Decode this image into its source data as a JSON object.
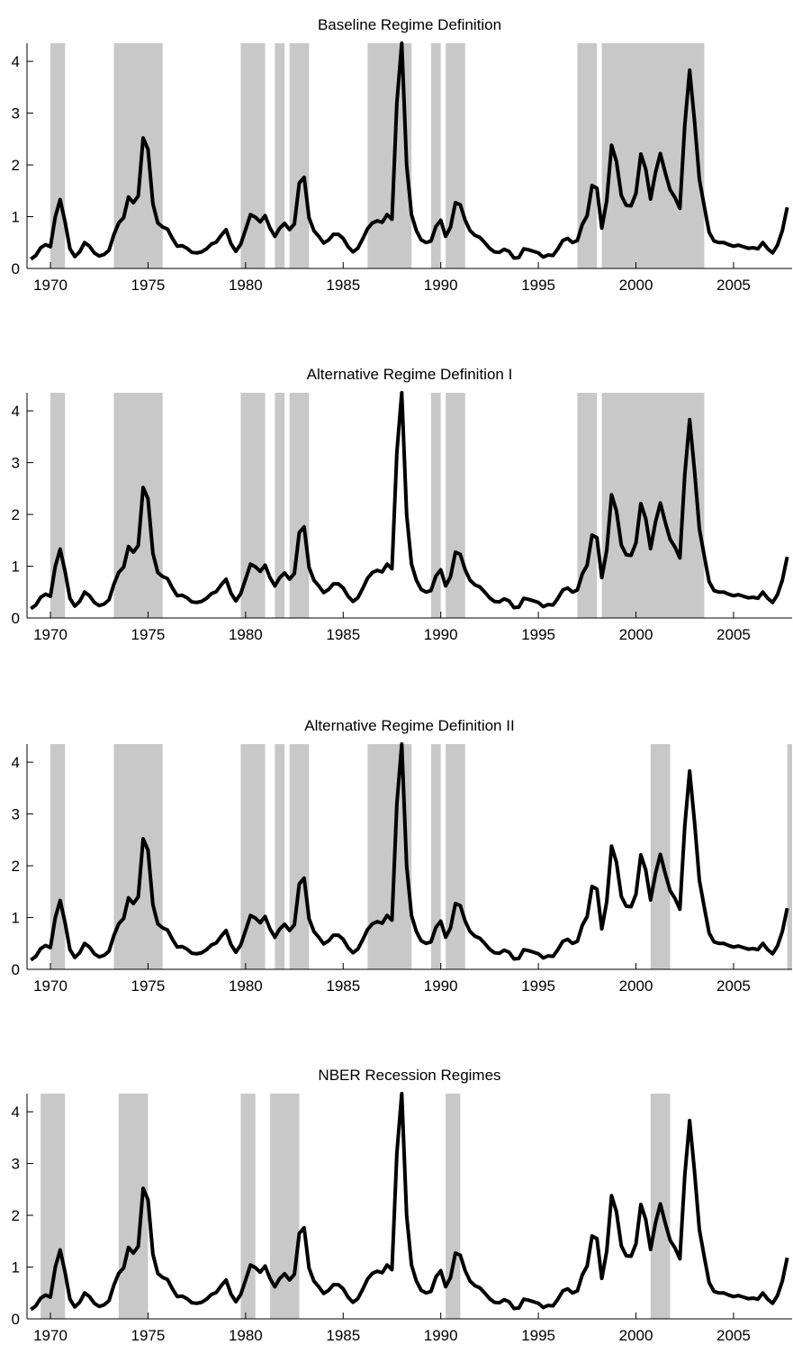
{
  "colors": {
    "line": "#000000",
    "shade": "#c8c8c8",
    "axis": "#000000",
    "background": "#ffffff"
  },
  "series_x": [
    1969.0,
    1969.25,
    1969.5,
    1969.75,
    1970.0,
    1970.25,
    1970.5,
    1970.75,
    1971.0,
    1971.25,
    1971.5,
    1971.75,
    1972.0,
    1972.25,
    1972.5,
    1972.75,
    1973.0,
    1973.25,
    1973.5,
    1973.75,
    1974.0,
    1974.25,
    1974.5,
    1974.75,
    1975.0,
    1975.25,
    1975.5,
    1975.75,
    1976.0,
    1976.25,
    1976.5,
    1976.75,
    1977.0,
    1977.25,
    1977.5,
    1977.75,
    1978.0,
    1978.25,
    1978.5,
    1978.75,
    1979.0,
    1979.25,
    1979.5,
    1979.75,
    1980.0,
    1980.25,
    1980.5,
    1980.75,
    1981.0,
    1981.25,
    1981.5,
    1981.75,
    1982.0,
    1982.25,
    1982.5,
    1982.75,
    1983.0,
    1983.25,
    1983.5,
    1983.75,
    1984.0,
    1984.25,
    1984.5,
    1984.75,
    1985.0,
    1985.25,
    1985.5,
    1985.75,
    1986.0,
    1986.25,
    1986.5,
    1986.75,
    1987.0,
    1987.25,
    1987.5,
    1987.75,
    1988.0,
    1988.25,
    1988.5,
    1988.75,
    1989.0,
    1989.25,
    1989.5,
    1989.75,
    1990.0,
    1990.25,
    1990.5,
    1990.75,
    1991.0,
    1991.25,
    1991.5,
    1991.75,
    1992.0,
    1992.25,
    1992.5,
    1992.75,
    1993.0,
    1993.25,
    1993.5,
    1993.75,
    1994.0,
    1994.25,
    1994.5,
    1994.75,
    1995.0,
    1995.25,
    1995.5,
    1995.75,
    1996.0,
    1996.25,
    1996.5,
    1996.75,
    1997.0,
    1997.25,
    1997.5,
    1997.75,
    1998.0,
    1998.25,
    1998.5,
    1998.75,
    1999.0,
    1999.25,
    1999.5,
    1999.75,
    2000.0,
    2000.25,
    2000.5,
    2000.75,
    2001.0,
    2001.25,
    2001.5,
    2001.75,
    2002.0,
    2002.25,
    2002.5,
    2002.75,
    2003.0,
    2003.25,
    2003.5,
    2003.75,
    2004.0,
    2004.25,
    2004.5,
    2004.75,
    2005.0,
    2005.25,
    2005.5,
    2005.75,
    2006.0,
    2006.25,
    2006.5,
    2006.75,
    2007.0,
    2007.25,
    2007.5,
    2007.75
  ],
  "series_y": [
    0.18,
    0.25,
    0.4,
    0.46,
    0.42,
    1.0,
    1.33,
    0.9,
    0.38,
    0.23,
    0.32,
    0.5,
    0.43,
    0.3,
    0.24,
    0.27,
    0.35,
    0.65,
    0.88,
    0.98,
    1.38,
    1.27,
    1.4,
    2.52,
    2.3,
    1.25,
    0.88,
    0.8,
    0.76,
    0.58,
    0.43,
    0.44,
    0.39,
    0.31,
    0.3,
    0.32,
    0.38,
    0.47,
    0.51,
    0.64,
    0.75,
    0.48,
    0.33,
    0.47,
    0.75,
    1.04,
    0.99,
    0.9,
    1.02,
    0.78,
    0.62,
    0.78,
    0.87,
    0.75,
    0.86,
    1.65,
    1.76,
    0.98,
    0.73,
    0.62,
    0.49,
    0.55,
    0.66,
    0.66,
    0.58,
    0.42,
    0.32,
    0.39,
    0.57,
    0.77,
    0.88,
    0.92,
    0.89,
    1.04,
    0.95,
    3.2,
    4.35,
    2.0,
    1.04,
    0.73,
    0.55,
    0.5,
    0.53,
    0.81,
    0.93,
    0.62,
    0.8,
    1.27,
    1.23,
    0.93,
    0.73,
    0.64,
    0.6,
    0.5,
    0.39,
    0.32,
    0.31,
    0.37,
    0.33,
    0.2,
    0.21,
    0.38,
    0.36,
    0.33,
    0.3,
    0.22,
    0.26,
    0.25,
    0.38,
    0.54,
    0.58,
    0.5,
    0.54,
    0.85,
    1.02,
    1.6,
    1.55,
    0.78,
    1.3,
    2.38,
    2.07,
    1.41,
    1.22,
    1.21,
    1.45,
    2.21,
    1.92,
    1.34,
    1.85,
    2.22,
    1.85,
    1.52,
    1.37,
    1.16,
    2.76,
    3.83,
    2.85,
    1.72,
    1.2,
    0.7,
    0.53,
    0.5,
    0.5,
    0.46,
    0.43,
    0.45,
    0.42,
    0.39,
    0.4,
    0.38,
    0.5,
    0.38,
    0.3,
    0.45,
    0.73,
    1.18
  ],
  "chart_data": [
    {
      "type": "line",
      "title": "Baseline Regime Definition",
      "xlim": [
        1968.8,
        2008.0
      ],
      "ylim": [
        0,
        4.35
      ],
      "xticks": [
        1970,
        1975,
        1980,
        1985,
        1990,
        1995,
        2000,
        2005
      ],
      "xtick_labels": [
        "1970",
        "1975",
        "1980",
        "1985",
        "1990",
        "1995",
        "2000",
        "2005"
      ],
      "yticks": [
        0,
        1,
        2,
        3,
        4
      ],
      "ytick_labels": [
        "0",
        "1",
        "2",
        "3",
        "4"
      ],
      "shaded_regimes": [
        [
          1970.0,
          1970.75
        ],
        [
          1973.25,
          1975.75
        ],
        [
          1979.75,
          1981.0
        ],
        [
          1981.5,
          1982.0
        ],
        [
          1982.25,
          1983.25
        ],
        [
          1986.25,
          1988.5
        ],
        [
          1989.5,
          1990.0
        ],
        [
          1990.25,
          1991.25
        ],
        [
          1997.0,
          1998.0
        ],
        [
          1998.25,
          2003.5
        ]
      ],
      "series": [
        {
          "values": "see series_y"
        }
      ]
    },
    {
      "type": "line",
      "title": "Alternative Regime Definition I",
      "xlim": [
        1968.8,
        2008.0
      ],
      "ylim": [
        0,
        4.35
      ],
      "xticks": [
        1970,
        1975,
        1980,
        1985,
        1990,
        1995,
        2000,
        2005
      ],
      "xtick_labels": [
        "1970",
        "1975",
        "1980",
        "1985",
        "1990",
        "1995",
        "2000",
        "2005"
      ],
      "yticks": [
        0,
        1,
        2,
        3,
        4
      ],
      "ytick_labels": [
        "0",
        "1",
        "2",
        "3",
        "4"
      ],
      "shaded_regimes": [
        [
          1970.0,
          1970.75
        ],
        [
          1973.25,
          1975.75
        ],
        [
          1979.75,
          1981.0
        ],
        [
          1981.5,
          1982.0
        ],
        [
          1982.25,
          1983.25
        ],
        [
          1989.5,
          1990.0
        ],
        [
          1990.25,
          1991.25
        ],
        [
          1997.0,
          1998.0
        ],
        [
          1998.25,
          2003.5
        ]
      ],
      "series": [
        {
          "values": "see series_y"
        }
      ]
    },
    {
      "type": "line",
      "title": "Alternative Regime Definition II",
      "xlim": [
        1968.8,
        2008.0
      ],
      "ylim": [
        0,
        4.35
      ],
      "xticks": [
        1970,
        1975,
        1980,
        1985,
        1990,
        1995,
        2000,
        2005
      ],
      "xtick_labels": [
        "1970",
        "1975",
        "1980",
        "1985",
        "1990",
        "1995",
        "2000",
        "2005"
      ],
      "yticks": [
        0,
        1,
        2,
        3,
        4
      ],
      "ytick_labels": [
        "0",
        "1",
        "2",
        "3",
        "4"
      ],
      "shaded_regimes": [
        [
          1970.0,
          1970.75
        ],
        [
          1973.25,
          1975.75
        ],
        [
          1979.75,
          1981.0
        ],
        [
          1981.5,
          1982.0
        ],
        [
          1982.25,
          1983.25
        ],
        [
          1986.25,
          1988.5
        ],
        [
          1989.5,
          1990.0
        ],
        [
          1990.25,
          1991.25
        ],
        [
          2000.75,
          2001.75
        ],
        [
          2007.75,
          2008.0
        ]
      ],
      "series": [
        {
          "values": "see series_y"
        }
      ]
    },
    {
      "type": "line",
      "title": "NBER Recession Regimes",
      "xlim": [
        1968.8,
        2008.0
      ],
      "ylim": [
        0,
        4.35
      ],
      "xticks": [
        1970,
        1975,
        1980,
        1985,
        1990,
        1995,
        2000,
        2005
      ],
      "xtick_labels": [
        "1970",
        "1975",
        "1980",
        "1985",
        "1990",
        "1995",
        "2000",
        "2005"
      ],
      "yticks": [
        0,
        1,
        2,
        3,
        4
      ],
      "ytick_labels": [
        "0",
        "1",
        "2",
        "3",
        "4"
      ],
      "shaded_regimes": [
        [
          1969.5,
          1970.75
        ],
        [
          1973.5,
          1975.0
        ],
        [
          1979.75,
          1980.5
        ],
        [
          1981.25,
          1982.75
        ],
        [
          1990.25,
          1991.0
        ],
        [
          2000.75,
          2001.75
        ]
      ],
      "series": [
        {
          "values": "see series_y"
        }
      ]
    }
  ]
}
